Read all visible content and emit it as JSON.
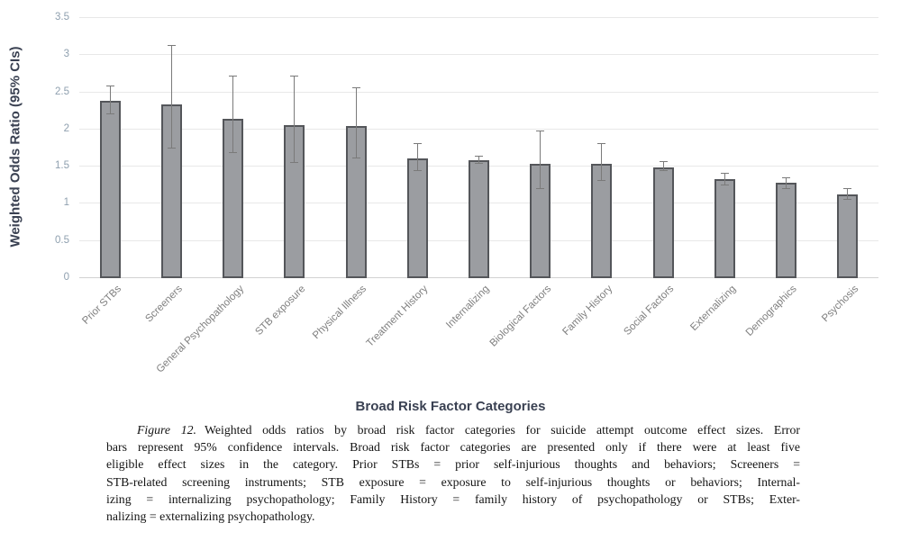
{
  "chart_data": {
    "type": "bar",
    "title": "",
    "xlabel": "Broad Risk Factor Categories",
    "ylabel": "Weighted Odds Ratio (95% CIs)",
    "ylim": [
      0,
      3.5
    ],
    "ytick_labels": [
      "3.5",
      "3",
      "2.5",
      "2",
      "1.5",
      "1",
      "0.5",
      "0"
    ],
    "grid": true,
    "legend": "none",
    "categories": [
      "Prior STBs",
      "Screeners",
      "General Psychopathology",
      "STB exposure",
      "Physical Illness",
      "Treatment History",
      "Internalizing",
      "Biological Factors",
      "Family History",
      "Social Factors",
      "Externalizing",
      "Demographics",
      "Psychosis"
    ],
    "values": [
      2.37,
      2.33,
      2.13,
      2.05,
      2.03,
      1.6,
      1.57,
      1.52,
      1.52,
      1.48,
      1.32,
      1.27,
      1.12
    ],
    "ci_low": [
      2.19,
      1.73,
      1.67,
      1.54,
      1.6,
      1.43,
      1.53,
      1.19,
      1.29,
      1.43,
      1.24,
      1.19,
      1.04
    ],
    "ci_high": [
      2.58,
      3.13,
      2.71,
      2.71,
      2.55,
      1.81,
      1.63,
      1.97,
      1.81,
      1.56,
      1.4,
      1.35,
      1.2
    ],
    "colors": {
      "bar_fill": "#9b9da1",
      "bar_border": "#54565a",
      "error_bar": "#7a7a7a",
      "gridline": "#e8e8e8",
      "baseline": "#d2d2d2",
      "ytick_label": "#8fa0af",
      "category_label": "#7f7f7f",
      "axis_title": "#3a4152"
    }
  },
  "axis": {
    "y_title": "Weighted Odds Ratio (95% CIs)",
    "x_title": "Broad Risk Factor Categories"
  },
  "caption": {
    "figure_label": "Figure 12.",
    "lines": [
      "Weighted odds ratios by broad risk factor categories for suicide attempt outcome effect sizes. Error",
      "bars represent 95% confidence intervals. Broad risk factor categories are presented only if there were at least five",
      "eligible effect sizes in the category. Prior STBs = prior self-injurious thoughts and behaviors; Screeners =",
      "STB-related screening instruments; STB exposure = exposure to self-injurious thoughts or behaviors; Internal-",
      "izing = internalizing psychopathology; Family History = family history of psychopathology or STBs; Exter-",
      "nalizing = externalizing psychopathology."
    ]
  }
}
